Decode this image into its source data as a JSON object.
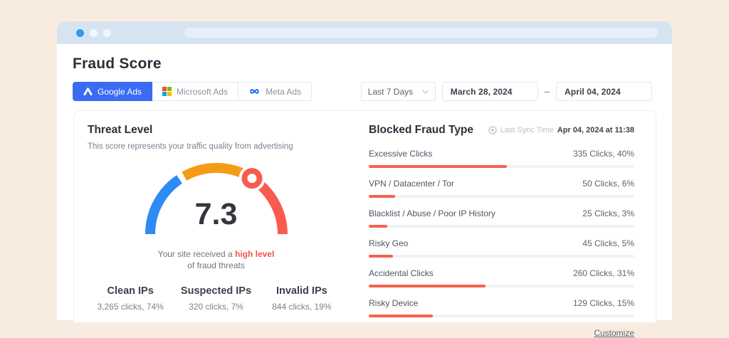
{
  "page": {
    "title": "Fraud Score"
  },
  "tabs": [
    {
      "label": "Google Ads",
      "active": true
    },
    {
      "label": "Microsoft Ads",
      "active": false
    },
    {
      "label": "Meta Ads",
      "active": false
    }
  ],
  "filters": {
    "range_label": "Last 7 Days",
    "start_date": "March 28, 2024",
    "separator": "–",
    "end_date": "April 04, 2024"
  },
  "threat_level": {
    "title": "Threat Level",
    "subtitle": "This score represents your traffic quality from advertising",
    "score": "7.3",
    "caption_prefix": "Your site received a ",
    "caption_highlight": "high level",
    "caption_line2": "of fraud threats",
    "stats": [
      {
        "label": "Clean IPs",
        "value": "3,265 clicks, 74%"
      },
      {
        "label": "Suspected IPs",
        "value": "320 clicks, 7%"
      },
      {
        "label": "Invalid IPs",
        "value": "844 clicks, 19%"
      }
    ]
  },
  "blocked": {
    "title": "Blocked Fraud Type",
    "sync_label": "Last Sync Time",
    "sync_value": "Apr 04, 2024 at 11:38",
    "rows": [
      {
        "label": "Excessive Clicks",
        "value": "335 Clicks, 40%",
        "bar_pct": 52
      },
      {
        "label": "VPN / Datacenter / Tor",
        "value": "50 Clicks, 6%",
        "bar_pct": 10
      },
      {
        "label": "Blacklist / Abuse / Poor IP History",
        "value": "25 Clicks, 3%",
        "bar_pct": 7
      },
      {
        "label": "Risky Geo",
        "value": "45 Clicks, 5%",
        "bar_pct": 9
      },
      {
        "label": "Accidental Clicks",
        "value": "260 Clicks, 31%",
        "bar_pct": 44
      },
      {
        "label": "Risky Device",
        "value": "129 Clicks, 15%",
        "bar_pct": 24
      }
    ],
    "customize_label": "Customize"
  },
  "colors": {
    "background": "#F8ECE1",
    "browser_bar": "#D6E4F2",
    "active_tab": "#3B6BF2",
    "gauge_blue": "#2E8BF5",
    "gauge_orange": "#F59B16",
    "gauge_red": "#F95B4F",
    "bar_fill": "#F8604F",
    "highlight_red": "#F4534A"
  },
  "chart_data": [
    {
      "type": "gauge",
      "title": "Threat Level",
      "value": 7.3,
      "range": [
        0,
        10
      ],
      "segments": [
        {
          "name": "low",
          "color": "#2E8BF5"
        },
        {
          "name": "medium",
          "color": "#F59B16"
        },
        {
          "name": "high",
          "color": "#F95B4F"
        }
      ],
      "annotation": "Your site received a high level of fraud threats"
    },
    {
      "type": "bar",
      "title": "Blocked Fraud Type",
      "categories": [
        "Excessive Clicks",
        "VPN / Datacenter / Tor",
        "Blacklist / Abuse / Poor IP History",
        "Risky Geo",
        "Accidental Clicks",
        "Risky Device"
      ],
      "clicks": [
        335,
        50,
        25,
        45,
        260,
        129
      ],
      "percents": [
        40,
        6,
        3,
        5,
        31,
        15
      ]
    }
  ]
}
